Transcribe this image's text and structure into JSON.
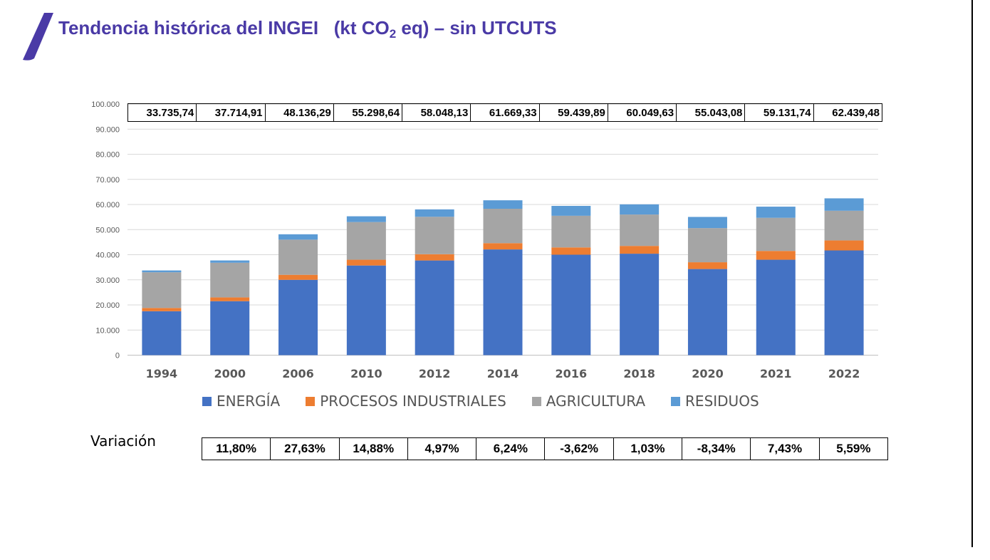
{
  "title": {
    "pre": "Tendencia histórica del INGEI   (kt CO",
    "sub": "2",
    "post": " eq) – sin UTCUTS"
  },
  "variation_label": "Variación",
  "colors": {
    "energia": "#4472c4",
    "procesos": "#ed7d31",
    "agricultura": "#a5a5a5",
    "residuos": "#5b9bd5",
    "title": "#4a3aa6"
  },
  "chart_data": {
    "type": "bar",
    "stacked": true,
    "categories": [
      "1994",
      "2000",
      "2006",
      "2010",
      "2012",
      "2014",
      "2016",
      "2018",
      "2020",
      "2021",
      "2022"
    ],
    "ylim": [
      0,
      100000
    ],
    "yticks": [
      "0",
      "10.000",
      "20.000",
      "30.000",
      "40.000",
      "50.000",
      "60.000",
      "70.000",
      "80.000",
      "90.000",
      "100.000"
    ],
    "grid": true,
    "legend_position": "bottom",
    "series": [
      {
        "name": "ENERGÍA",
        "color": "#4472c4",
        "values": [
          17500,
          21500,
          30000,
          35700,
          37700,
          42100,
          40000,
          40400,
          34300,
          38000,
          41700
        ]
      },
      {
        "name": "PROCESOS INDUSTRIALES",
        "color": "#ed7d31",
        "values": [
          1300,
          1500,
          2000,
          2300,
          2500,
          2500,
          2900,
          3100,
          2700,
          3500,
          4000
        ]
      },
      {
        "name": "AGRICULTURA",
        "color": "#a5a5a5",
        "values": [
          14200,
          13800,
          14000,
          15000,
          14900,
          13700,
          12600,
          12500,
          13600,
          13200,
          11800
        ]
      },
      {
        "name": "RESIDUOS",
        "color": "#5b9bd5",
        "values": [
          735.74,
          914.91,
          2136.29,
          2298.64,
          2948.13,
          3369.33,
          3939.89,
          4049.63,
          4443.08,
          4431.74,
          4939.48
        ]
      }
    ],
    "totals": [
      "33.735,74",
      "37.714,91",
      "48.136,29",
      "55.298,64",
      "58.048,13",
      "61.669,33",
      "59.439,89",
      "60.049,63",
      "55.043,08",
      "59.131,74",
      "62.439,48"
    ],
    "variation": [
      "11,80%",
      "27,63%",
      "14,88%",
      "4,97%",
      "6,24%",
      "-3,62%",
      "1,03%",
      "-8,34%",
      "7,43%",
      "5,59%"
    ]
  }
}
